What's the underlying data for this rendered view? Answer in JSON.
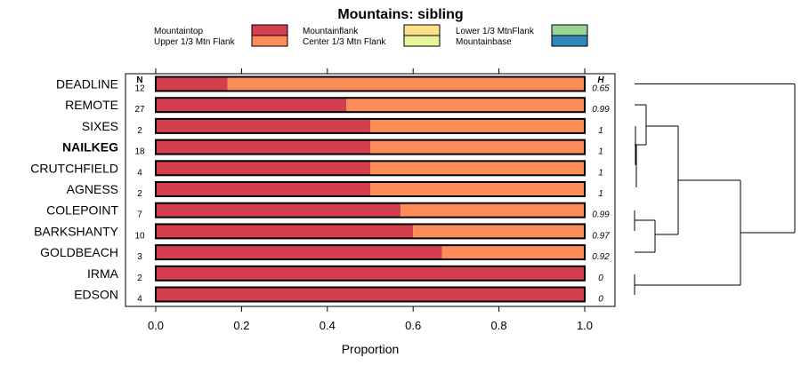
{
  "chart_data": {
    "type": "bar",
    "stacked": true,
    "orientation": "horizontal",
    "title": "Mountains: sibling",
    "xlabel": "Proportion",
    "xlim": [
      0,
      1
    ],
    "xticks": [
      "0.0",
      "0.2",
      "0.4",
      "0.6",
      "0.8",
      "1.0"
    ],
    "xtick_values": [
      0,
      0.2,
      0.4,
      0.6,
      0.8,
      1.0
    ],
    "n_header": "N",
    "h_header": "H",
    "legend": [
      {
        "label": "Mountaintop",
        "color": "#d53e4f"
      },
      {
        "label": "Upper 1/3 Mtn Flank",
        "color": "#fc8d59"
      },
      {
        "label": "Mountainflank",
        "color": "#fee08b"
      },
      {
        "label": "Center 1/3 Mtn Flank",
        "color": "#e6f598"
      },
      {
        "label": "Lower 1/3 MtnFlank",
        "color": "#99d594"
      },
      {
        "label": "Mountainbase",
        "color": "#3288bd"
      }
    ],
    "highlight": "NAILKEG",
    "categories": [
      "DEADLINE",
      "REMOTE",
      "SIXES",
      "NAILKEG",
      "CRUTCHFIELD",
      "AGNESS",
      "COLEPOINT",
      "BARKSHANTY",
      "GOLDBEACH",
      "IRMA",
      "EDSON"
    ],
    "n": [
      "12",
      "27",
      "2",
      "18",
      "4",
      "2",
      "7",
      "10",
      "3",
      "2",
      "4"
    ],
    "h": [
      "0.65",
      "0.99",
      "1",
      "1",
      "1",
      "1",
      "0.99",
      "0.97",
      "0.92",
      "0",
      "0"
    ],
    "series": [
      {
        "name": "Mountaintop",
        "color": "#d53e4f",
        "values": [
          0.167,
          0.444,
          0.5,
          0.5,
          0.5,
          0.5,
          0.571,
          0.6,
          0.667,
          1.0,
          1.0
        ]
      },
      {
        "name": "Upper 1/3 Mtn Flank",
        "color": "#fc8d59",
        "values": [
          0.833,
          0.556,
          0.5,
          0.5,
          0.5,
          0.5,
          0.429,
          0.4,
          0.333,
          0,
          0
        ]
      }
    ],
    "dendrogram": "sibling cluster tree of the 11 sites"
  }
}
